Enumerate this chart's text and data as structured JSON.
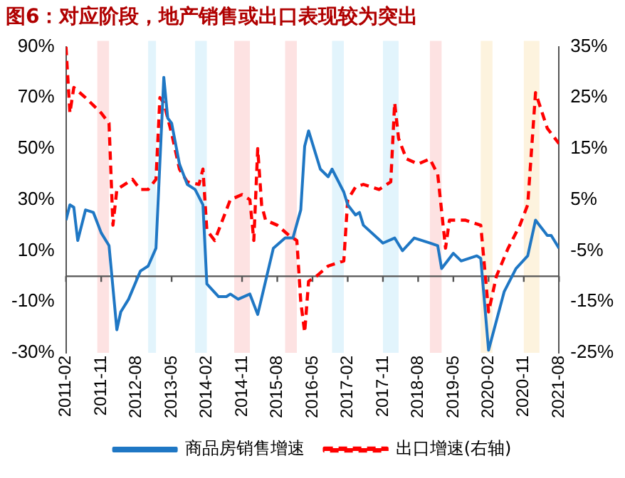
{
  "chart_data": {
    "type": "line",
    "title": "图6：对应阶段，地产销售或出口表现较为突出",
    "xlim": [
      "2011-02",
      "2021-08"
    ],
    "xticks": [
      "2011-02",
      "2011-11",
      "2012-08",
      "2013-05",
      "2014-02",
      "2014-11",
      "2015-08",
      "2016-05",
      "2017-02",
      "2017-11",
      "2018-08",
      "2019-05",
      "2020-02",
      "2020-11",
      "2021-08"
    ],
    "ylim": [
      -30,
      90
    ],
    "yticks": [
      {
        "value": -30,
        "label": "-30%"
      },
      {
        "value": -10,
        "label": "-10%"
      },
      {
        "value": 10,
        "label": "10%"
      },
      {
        "value": 30,
        "label": "30%"
      },
      {
        "value": 50,
        "label": "50%"
      },
      {
        "value": 70,
        "label": "70%"
      },
      {
        "value": 90,
        "label": "90%"
      }
    ],
    "y2lim": [
      -25,
      35
    ],
    "y2ticks": [
      {
        "value": -25,
        "label": "-25%"
      },
      {
        "value": -15,
        "label": "-15%"
      },
      {
        "value": -5,
        "label": "-5%"
      },
      {
        "value": 5,
        "label": "5%"
      },
      {
        "value": 15,
        "label": "15%"
      },
      {
        "value": 25,
        "label": "25%"
      },
      {
        "value": 35,
        "label": "35%"
      }
    ],
    "series": [
      {
        "name": "商品房销售增速",
        "color": "#1f77c4",
        "line_style": "solid",
        "x": [
          "2011-02",
          "2011-03",
          "2011-04",
          "2011-05",
          "2011-07",
          "2011-09",
          "2011-11",
          "2012-01",
          "2012-03",
          "2012-04",
          "2012-06",
          "2012-09",
          "2012-11",
          "2013-01",
          "2013-03",
          "2013-04",
          "2013-05",
          "2013-07",
          "2013-09",
          "2013-11",
          "2014-01",
          "2014-02",
          "2014-05",
          "2014-07",
          "2014-08",
          "2014-10",
          "2015-01",
          "2015-03",
          "2015-05",
          "2015-07",
          "2015-10",
          "2015-12",
          "2016-02",
          "2016-03",
          "2016-04",
          "2016-07",
          "2016-09",
          "2016-10",
          "2017-01",
          "2017-02",
          "2017-04",
          "2017-05",
          "2017-06",
          "2017-11",
          "2018-02",
          "2018-04",
          "2018-07",
          "2018-11",
          "2019-01",
          "2019-02",
          "2019-05",
          "2019-07",
          "2019-11",
          "2019-12",
          "2020-02",
          "2020-06",
          "2020-09",
          "2020-12",
          "2021-02",
          "2021-05",
          "2021-06",
          "2021-08"
        ],
        "values": [
          22,
          28,
          27,
          14,
          26,
          25,
          17,
          12,
          -21,
          -14,
          -9,
          2,
          4,
          11,
          78,
          62,
          60,
          44,
          36,
          34,
          28,
          -3,
          -8,
          -8,
          -7,
          -9,
          -7,
          -15,
          -2,
          11,
          15,
          15,
          26,
          51,
          57,
          42,
          39,
          42,
          33,
          28,
          24,
          25,
          20,
          13,
          15,
          10,
          15,
          13,
          12,
          3,
          9,
          6,
          8,
          7,
          -29,
          -6,
          3,
          8,
          22,
          16,
          16,
          11
        ]
      },
      {
        "name": "出口增速(右轴)",
        "color": "#ff0000",
        "axis": "y2",
        "line_style": "dashed",
        "x": [
          "2011-02",
          "2011-03",
          "2011-04",
          "2011-07",
          "2011-11",
          "2012-01",
          "2012-02",
          "2012-03",
          "2012-07",
          "2012-09",
          "2012-11",
          "2013-01",
          "2013-02",
          "2013-03",
          "2013-05",
          "2013-07",
          "2013-09",
          "2013-12",
          "2014-01",
          "2014-02",
          "2014-04",
          "2014-06",
          "2014-08",
          "2014-11",
          "2015-01",
          "2015-02",
          "2015-03",
          "2015-04",
          "2015-05",
          "2015-08",
          "2015-11",
          "2016-01",
          "2016-02",
          "2016-03",
          "2016-04",
          "2016-06",
          "2016-09",
          "2017-01",
          "2017-02",
          "2017-04",
          "2017-06",
          "2017-10",
          "2018-01",
          "2018-02",
          "2018-03",
          "2018-05",
          "2018-08",
          "2018-11",
          "2019-01",
          "2019-03",
          "2019-04",
          "2019-08",
          "2019-12",
          "2020-02",
          "2020-04",
          "2020-07",
          "2020-10",
          "2020-12",
          "2021-02",
          "2021-05",
          "2021-08"
        ],
        "values": [
          35,
          22,
          27,
          25,
          22,
          20,
          0,
          7,
          9,
          7,
          7,
          9,
          25,
          24,
          18,
          11,
          8.5,
          8,
          11,
          -1,
          -3,
          1,
          5,
          6,
          5,
          -3,
          15,
          4,
          1,
          0,
          -2,
          -3,
          -15,
          -21,
          -11,
          -10,
          -8,
          -7,
          5,
          7.5,
          8,
          7,
          8.5,
          24,
          17,
          13,
          12,
          13,
          10,
          -4.5,
          1,
          1,
          0,
          -17,
          -10,
          -4.5,
          0,
          4,
          26,
          19,
          16
        ]
      }
    ],
    "bands": [
      {
        "axis": "x",
        "from": "2011-10",
        "to": "2012-01",
        "color": "#fde2e2"
      },
      {
        "axis": "x",
        "from": "2012-11",
        "to": "2013-01",
        "color": "#e2f4fc"
      },
      {
        "axis": "x",
        "from": "2013-11",
        "to": "2014-02",
        "color": "#e2f4fc"
      },
      {
        "axis": "x",
        "from": "2014-09",
        "to": "2015-01",
        "color": "#fde2e2"
      },
      {
        "axis": "x",
        "from": "2015-10",
        "to": "2016-01",
        "color": "#fde2e2"
      },
      {
        "axis": "x",
        "from": "2016-10",
        "to": "2017-01",
        "color": "#e2f4fc"
      },
      {
        "axis": "x",
        "from": "2017-11",
        "to": "2018-03",
        "color": "#e2f4fc"
      },
      {
        "axis": "x",
        "from": "2018-11",
        "to": "2019-02",
        "color": "#fde2e2"
      },
      {
        "axis": "x",
        "from": "2019-12",
        "to": "2020-03",
        "color": "#fdf3de"
      },
      {
        "axis": "x",
        "from": "2020-11",
        "to": "2021-03",
        "color": "#fdf3de"
      }
    ],
    "grid": false,
    "legend": "bottom",
    "marker": "none"
  }
}
